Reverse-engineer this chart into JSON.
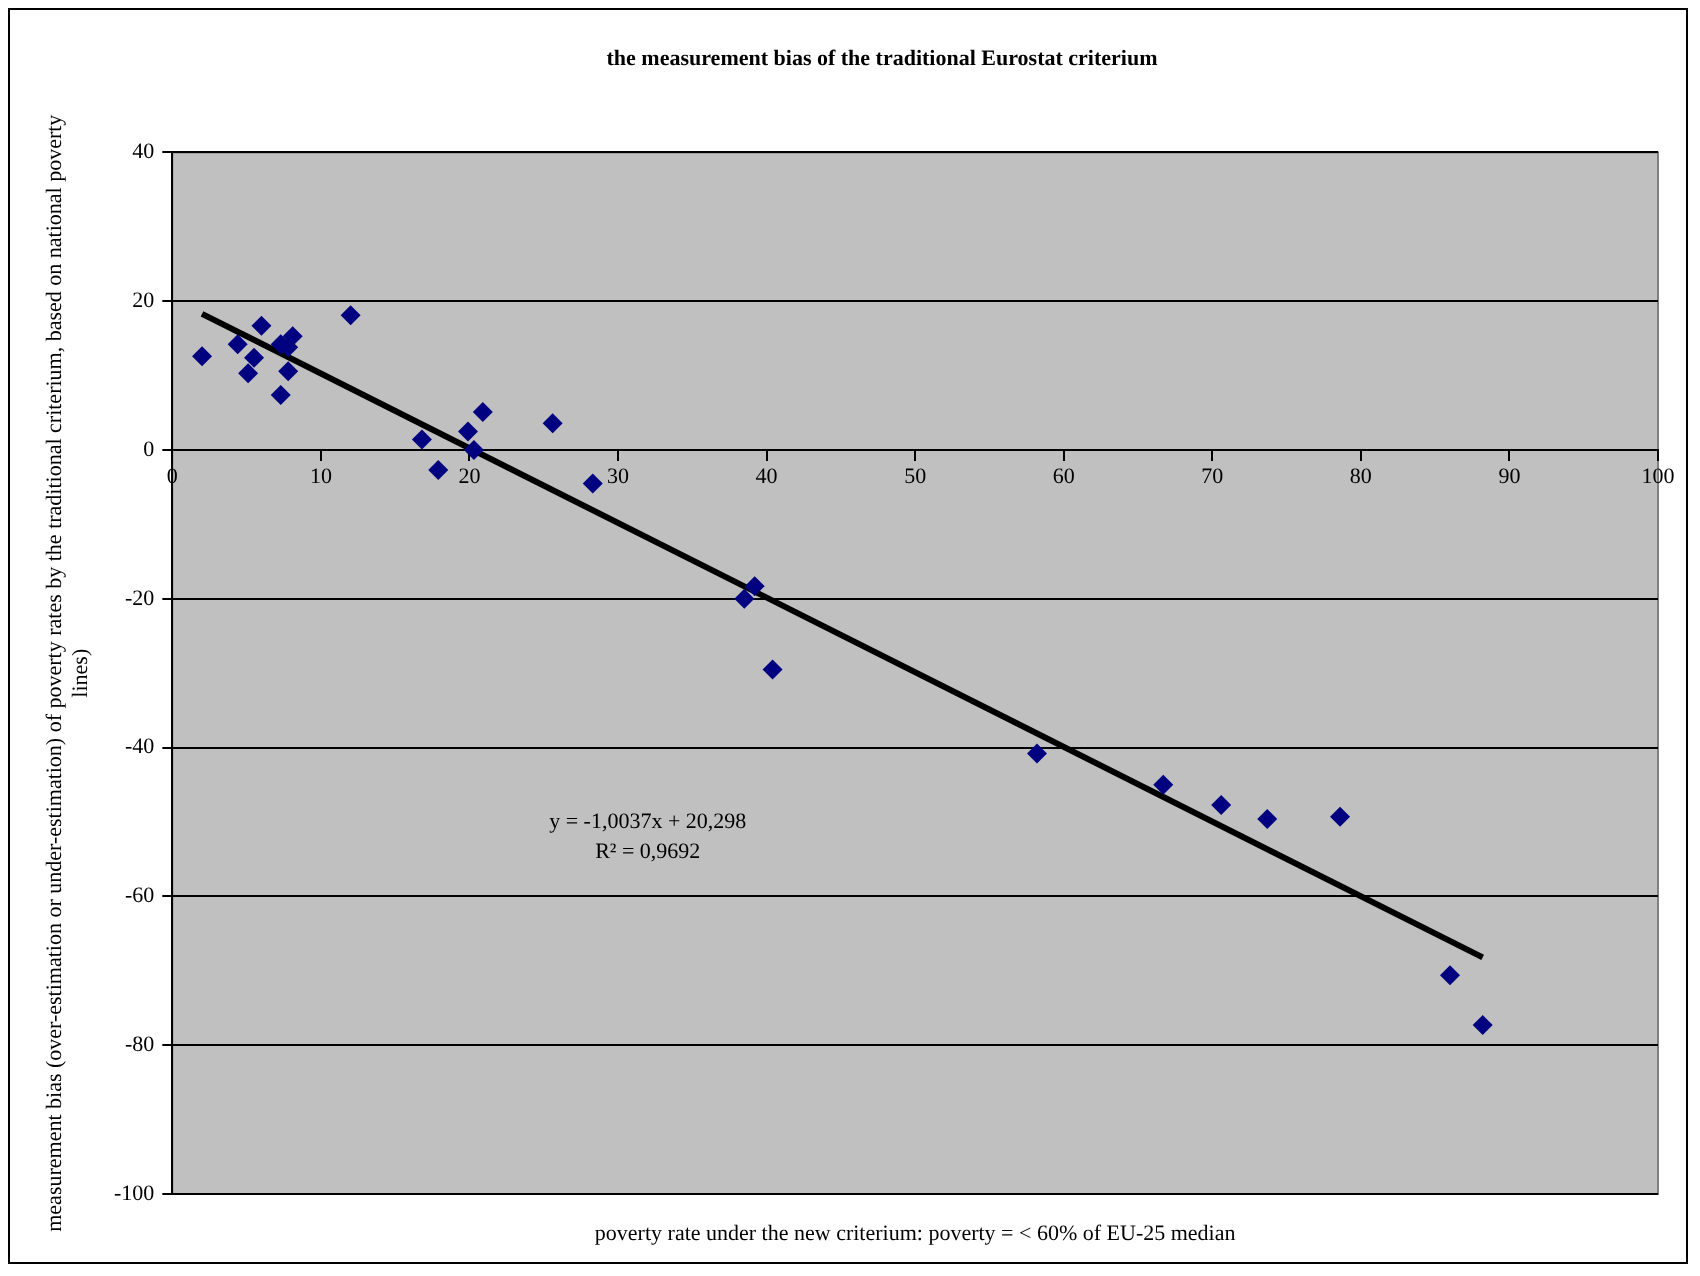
{
  "chart_data": {
    "type": "scatter",
    "title": "the measurement bias of the traditional Eurostat criterium",
    "xlabel": "poverty rate under the new criterium: poverty = < 60% of EU-25 median",
    "ylabel": "measurement bias (over-estimation or under-estimation) of poverty rates by the traditional criterium, based on national poverty lines)",
    "xlim": [
      0,
      100
    ],
    "xticks": [
      0,
      10,
      20,
      30,
      40,
      50,
      60,
      70,
      80,
      90,
      100
    ],
    "ylim": [
      -100,
      40
    ],
    "yticks": [
      -100,
      -80,
      -60,
      -40,
      -20,
      0,
      20,
      40
    ],
    "grid": "y",
    "legend": false,
    "marker": "diamond",
    "annotations": [
      "y = -1,0037x + 20,298",
      "R² = 0,9692"
    ],
    "series": [
      {
        "color": "#000080",
        "x": [
          2.0,
          4.4,
          6.0,
          5.1,
          5.5,
          7.3,
          8.1,
          7.8,
          7.8,
          7.3,
          12.0,
          16.8,
          17.9,
          19.9,
          20.3,
          20.9,
          25.6,
          28.3,
          39.2,
          38.5,
          40.4,
          58.2,
          66.7,
          70.6,
          73.7,
          78.6,
          86.0,
          88.2
        ],
        "values": [
          12.6,
          14.2,
          16.7,
          10.3,
          12.4,
          14.2,
          15.3,
          13.8,
          10.6,
          7.4,
          18.1,
          1.4,
          -2.7,
          2.5,
          0,
          5.1,
          3.6,
          -4.5,
          -18.3,
          -20.0,
          -29.5,
          -40.8,
          -45.0,
          -47.7,
          -49.6,
          -49.3,
          -70.6,
          -77.3
        ]
      },
      {
        "type": "line",
        "color": "#000000",
        "marker": "none",
        "x": [
          2.0,
          88.2
        ],
        "values": [
          18.3,
          -68.2
        ]
      }
    ]
  }
}
